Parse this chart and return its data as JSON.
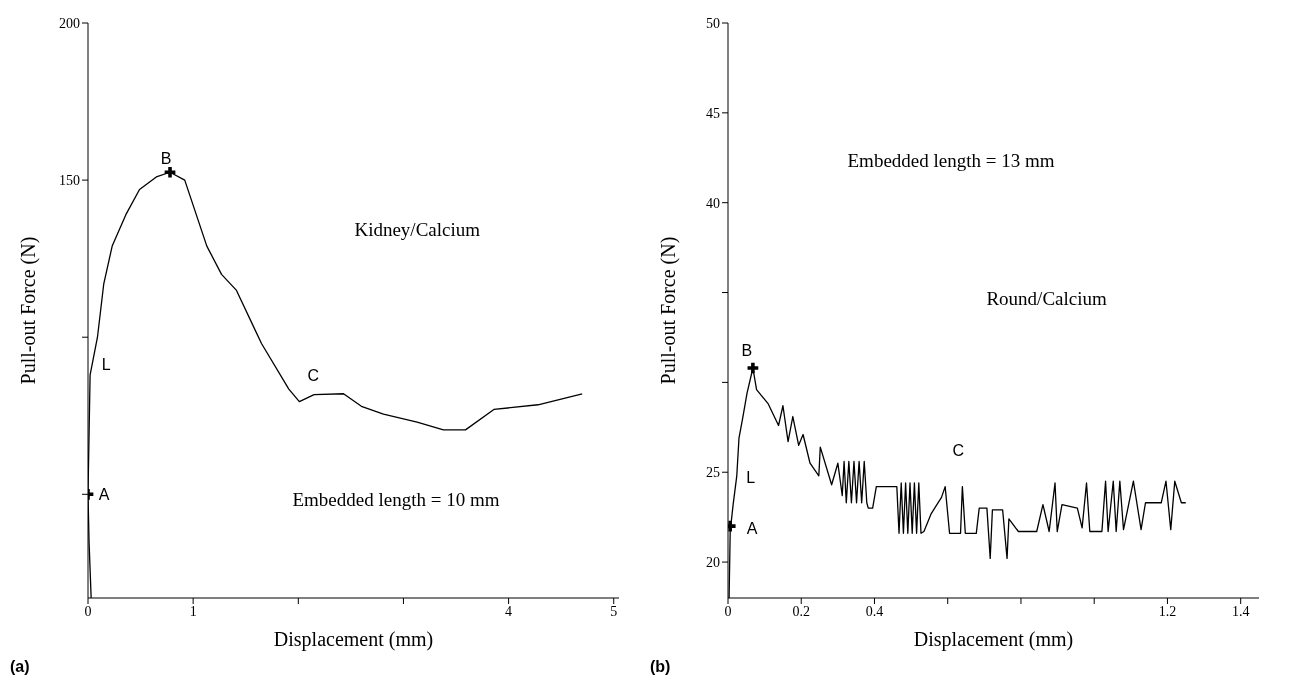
{
  "chart_data": [
    {
      "type": "line",
      "title": "(a)",
      "xlabel": "Displacement (mm)",
      "ylabel": "Pull-out Force (N)",
      "xlim": [
        0,
        5.05
      ],
      "ylim": [
        17,
        200
      ],
      "xticks": [
        0,
        1,
        {
          "value": 2,
          "label": null
        },
        {
          "value": 3,
          "label": null
        },
        4,
        5
      ],
      "yticks": [
        {
          "value": 50,
          "label": null
        },
        {
          "value": 100,
          "label": null
        },
        150,
        200
      ],
      "series": [
        {
          "color": "#000000",
          "x": [
            0.03,
            0.01,
            0,
            0.02,
            0.09,
            0.15,
            0.23,
            0.36,
            0.49,
            0.65,
            0.78,
            0.92,
            1.13,
            1.27,
            1.41,
            1.65,
            1.91,
            2.01,
            2.15,
            2.43,
            2.6,
            2.81,
            3.13,
            3.38,
            3.59,
            3.86,
            4.28,
            4.7
          ],
          "values": [
            17,
            35,
            50,
            88,
            100,
            117,
            129,
            139,
            147,
            151,
            152.5,
            150,
            129,
            120,
            115,
            98,
            83.5,
            79.5,
            81.7,
            82,
            78,
            75.5,
            73,
            70.5,
            70.5,
            77,
            78.5,
            82
          ]
        },
        {
          "type": "scatter",
          "marker": "cross",
          "color": "#000000",
          "x": [
            0,
            0.78
          ],
          "values": [
            50,
            152.5
          ]
        }
      ],
      "annotations": [
        {
          "text": "A",
          "x": 0,
          "y": 50
        },
        {
          "text": "B",
          "x": 0.78,
          "y": 152.5
        },
        {
          "text": "C",
          "x": 2.01,
          "y": 79.5
        },
        {
          "text": "L",
          "x": 0.02,
          "y": 88
        },
        "Kidney/Calcium",
        "Embedded length = 10 mm"
      ]
    },
    {
      "type": "line",
      "title": "(b)",
      "xlabel": "Displacement (mm)",
      "ylabel": "Pull-out Force (N)",
      "xlim": [
        0,
        1.45
      ],
      "ylim": [
        18,
        50
      ],
      "xticks": [
        0,
        0.2,
        0.4,
        {
          "value": 0.6,
          "label": null
        },
        {
          "value": 0.8,
          "label": null
        },
        {
          "value": 1,
          "label": null
        },
        1.2,
        1.4
      ],
      "yticks": [
        20,
        25,
        {
          "value": 30,
          "label": null
        },
        {
          "value": 35,
          "label": null
        },
        40,
        45,
        50
      ],
      "series": [
        {
          "color": "#000000",
          "x": [
            0.003,
            0.006,
            0.014,
            0.024,
            0.03,
            0.04,
            0.052,
            0.068,
            0.078,
            0.11,
            0.138,
            0.15,
            0.164,
            0.177,
            0.193,
            0.205,
            0.224,
            0.248,
            0.252,
            0.283,
            0.3,
            0.312,
            0.317,
            0.323,
            0.33,
            0.337,
            0.344,
            0.351,
            0.358,
            0.365,
            0.372,
            0.379,
            0.383,
            0.395,
            0.405,
            0.423,
            0.461,
            0.467,
            0.473,
            0.479,
            0.485,
            0.491,
            0.497,
            0.503,
            0.509,
            0.515,
            0.521,
            0.527,
            0.535,
            0.555,
            0.583,
            0.593,
            0.605,
            0.635,
            0.64,
            0.648,
            0.678,
            0.686,
            0.707,
            0.716,
            0.722,
            0.75,
            0.762,
            0.767,
            0.793,
            0.843,
            0.86,
            0.877,
            0.893,
            0.899,
            0.912,
            0.954,
            0.967,
            0.979,
            0.988,
            1.021,
            1.031,
            1.038,
            1.052,
            1.06,
            1.07,
            1.08,
            1.107,
            1.128,
            1.14,
            1.183,
            1.196,
            1.209,
            1.22,
            1.238,
            1.25
          ],
          "values": [
            18,
            21.7,
            23.2,
            24.8,
            26.9,
            28,
            29.4,
            30.8,
            29.6,
            28.8,
            27.6,
            28.7,
            26.7,
            28.1,
            26.5,
            27.1,
            25.5,
            24.8,
            26.4,
            24.3,
            25.5,
            23.7,
            25.6,
            23.3,
            25.6,
            23.3,
            25.6,
            23.3,
            25.6,
            23.3,
            25.6,
            23.3,
            23,
            23,
            24.2,
            24.2,
            24.2,
            21.6,
            24.4,
            21.6,
            24.4,
            21.6,
            24.4,
            21.6,
            24.4,
            21.6,
            24.4,
            21.6,
            21.7,
            22.7,
            23.6,
            24.2,
            21.6,
            21.6,
            24.2,
            21.6,
            21.6,
            23,
            23,
            20.2,
            22.9,
            22.9,
            20.2,
            22.4,
            21.7,
            21.7,
            23.2,
            21.7,
            24.4,
            21.7,
            23.2,
            23,
            21.9,
            24.4,
            21.7,
            21.7,
            24.5,
            21.7,
            24.5,
            21.7,
            24.5,
            21.8,
            24.5,
            21.8,
            23.3,
            23.3,
            24.5,
            21.8,
            24.5,
            23.3,
            23.3
          ]
        },
        {
          "type": "scatter",
          "marker": "cross",
          "color": "#000000",
          "x": [
            0.006,
            0.068
          ],
          "values": [
            22,
            30.8
          ]
        }
      ],
      "annotations": [
        {
          "text": "A",
          "x": 0.006,
          "y": 22
        },
        {
          "text": "B",
          "x": 0.068,
          "y": 30.8
        },
        {
          "text": "C",
          "x": 0.64,
          "y": 24.2
        },
        {
          "text": "L",
          "x": 0.024,
          "y": 24.8
        },
        "Round/Calcium",
        "Embedded length = 13 mm"
      ]
    }
  ]
}
